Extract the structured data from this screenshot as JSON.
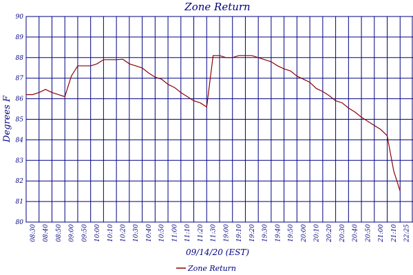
{
  "chart_data": {
    "type": "line",
    "title": "Zone Return",
    "xlabel": "09/14/20 (EST)",
    "ylabel": "Degrees F",
    "ylim": [
      80,
      90
    ],
    "y_ticks": [
      "80",
      "81",
      "82",
      "83",
      "84",
      "85",
      "86",
      "87",
      "88",
      "89",
      "90"
    ],
    "categories": [
      "08:30",
      "08:40",
      "08:50",
      "09:00",
      "09:50",
      "10:00",
      "10:10",
      "10:20",
      "10:30",
      "10:40",
      "10:50",
      "11:00",
      "11:10",
      "11:20",
      "11:30",
      "19:00",
      "19:10",
      "19:20",
      "19:30",
      "19:40",
      "19:50",
      "20:00",
      "20:10",
      "20:20",
      "20:30",
      "20:40",
      "20:50",
      "21:00",
      "21:10",
      "22:25"
    ],
    "grid": true,
    "legend_position": "bottom-center",
    "colors": {
      "line": "#8b0000",
      "grid": "#000080",
      "text": "#000080"
    },
    "series": [
      {
        "name": "Zone Return",
        "x": [
          0,
          0.5,
          1,
          1.5,
          2,
          2.5,
          3,
          3.5,
          4,
          4.5,
          5,
          5.5,
          6,
          6.5,
          7,
          7.5,
          8,
          8.5,
          9,
          9.5,
          10,
          10.5,
          11,
          11.5,
          12,
          12.5,
          13,
          13.5,
          14,
          14.5,
          15,
          15.5,
          16,
          16.5,
          17,
          17.5,
          18,
          18.5,
          19,
          19.5,
          20,
          20.5,
          21,
          21.5,
          22,
          22.5,
          23,
          23.5,
          24,
          24.5,
          25,
          25.5,
          26,
          26.5,
          27,
          27.5,
          28,
          28.5,
          29
        ],
        "values": [
          86.2,
          86.2,
          86.3,
          86.45,
          86.3,
          86.2,
          86.1,
          87.1,
          87.6,
          87.6,
          87.6,
          87.7,
          87.9,
          87.9,
          87.9,
          87.92,
          87.7,
          87.6,
          87.5,
          87.25,
          87.05,
          86.95,
          86.7,
          86.55,
          86.3,
          86.1,
          85.9,
          85.8,
          85.6,
          88.1,
          88.1,
          88.0,
          88.0,
          88.1,
          88.1,
          88.1,
          88.0,
          87.9,
          87.8,
          87.6,
          87.45,
          87.35,
          87.1,
          86.95,
          86.8,
          86.5,
          86.35,
          86.15,
          85.9,
          85.8,
          85.55,
          85.35,
          85.1,
          84.9,
          84.7,
          84.5,
          84.2,
          82.5,
          81.5
        ]
      }
    ]
  }
}
